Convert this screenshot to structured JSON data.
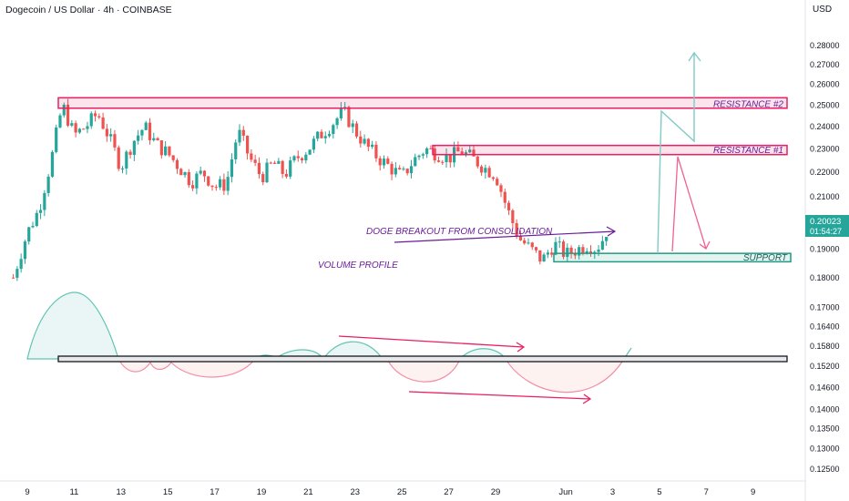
{
  "header": {
    "title": "Dogecoin / US Dollar · 4h · COINBASE",
    "currency": "USD"
  },
  "price_badge": {
    "price": "0.20023",
    "countdown": "01:54:27"
  },
  "colors": {
    "up": "#26a69a",
    "down": "#ef5350",
    "resistance": "#e91e63",
    "support": "#1e9c83",
    "annotation_text": "#6a1b9a",
    "projection": "#80cbc4",
    "projection_down": "#f06292"
  },
  "chart_data": {
    "type": "candlestick",
    "y_axis": {
      "ticks": [
        "0.28000",
        "0.27000",
        "0.26000",
        "0.25000",
        "0.24000",
        "0.23000",
        "0.22000",
        "0.21000",
        "0.19000",
        "0.18000",
        "0.17000",
        "0.16400",
        "0.15800",
        "0.15200",
        "0.14600",
        "0.14000",
        "0.13500",
        "0.13000",
        "0.12500"
      ],
      "scale": "log"
    },
    "x_axis": {
      "ticks": [
        "9",
        "11",
        "13",
        "15",
        "17",
        "19",
        "21",
        "23",
        "25",
        "27",
        "29",
        "Jun",
        "3",
        "5",
        "7",
        "9"
      ]
    },
    "levels": [
      {
        "label": "RESISTANCE #2",
        "price_low": 0.2485,
        "price_high": 0.2535
      },
      {
        "label": "RESISTANCE #1",
        "price_low": 0.2275,
        "price_high": 0.2315
      },
      {
        "label": "SUPPORT",
        "price_low": 0.1855,
        "price_high": 0.1885
      }
    ],
    "annotations": [
      "DOGE BREAKOUT FROM CONSOLIDATION",
      "VOLUME PROFILE"
    ],
    "series": [
      {
        "name": "price",
        "path": [
          [
            8.4,
            0.18
          ],
          [
            9.0,
            0.196
          ],
          [
            9.5,
            0.205
          ],
          [
            10.0,
            0.224
          ],
          [
            10.5,
            0.25
          ],
          [
            11.0,
            0.236
          ],
          [
            11.5,
            0.24
          ],
          [
            12.0,
            0.246
          ],
          [
            12.5,
            0.235
          ],
          [
            13.0,
            0.222
          ],
          [
            13.5,
            0.233
          ],
          [
            14.0,
            0.24
          ],
          [
            14.5,
            0.232
          ],
          [
            15.0,
            0.228
          ],
          [
            15.5,
            0.222
          ],
          [
            16.0,
            0.216
          ],
          [
            16.5,
            0.22
          ],
          [
            17.0,
            0.214
          ],
          [
            17.5,
            0.215
          ],
          [
            18.0,
            0.238
          ],
          [
            18.5,
            0.226
          ],
          [
            19.0,
            0.218
          ],
          [
            19.5,
            0.224
          ],
          [
            20.0,
            0.219
          ],
          [
            20.5,
            0.226
          ],
          [
            21.0,
            0.23
          ],
          [
            21.5,
            0.236
          ],
          [
            22.0,
            0.241
          ],
          [
            22.5,
            0.247
          ],
          [
            23.0,
            0.238
          ],
          [
            23.5,
            0.231
          ],
          [
            24.0,
            0.226
          ],
          [
            24.5,
            0.222
          ],
          [
            25.0,
            0.218
          ],
          [
            25.5,
            0.225
          ],
          [
            26.0,
            0.23
          ],
          [
            26.5,
            0.228
          ],
          [
            27.0,
            0.226
          ],
          [
            27.5,
            0.229
          ],
          [
            28.0,
            0.226
          ],
          [
            28.5,
            0.222
          ],
          [
            29.0,
            0.219
          ],
          [
            29.5,
            0.205
          ],
          [
            30.0,
            0.194
          ],
          [
            30.5,
            0.19
          ],
          [
            31.0,
            0.186
          ],
          [
            31.5,
            0.192
          ],
          [
            32.0,
            0.188
          ],
          [
            32.5,
            0.19
          ],
          [
            33.0,
            0.192
          ],
          [
            33.3,
            0.19
          ],
          [
            33.6,
            0.194
          ],
          [
            33.9,
            0.2
          ]
        ]
      }
    ]
  }
}
